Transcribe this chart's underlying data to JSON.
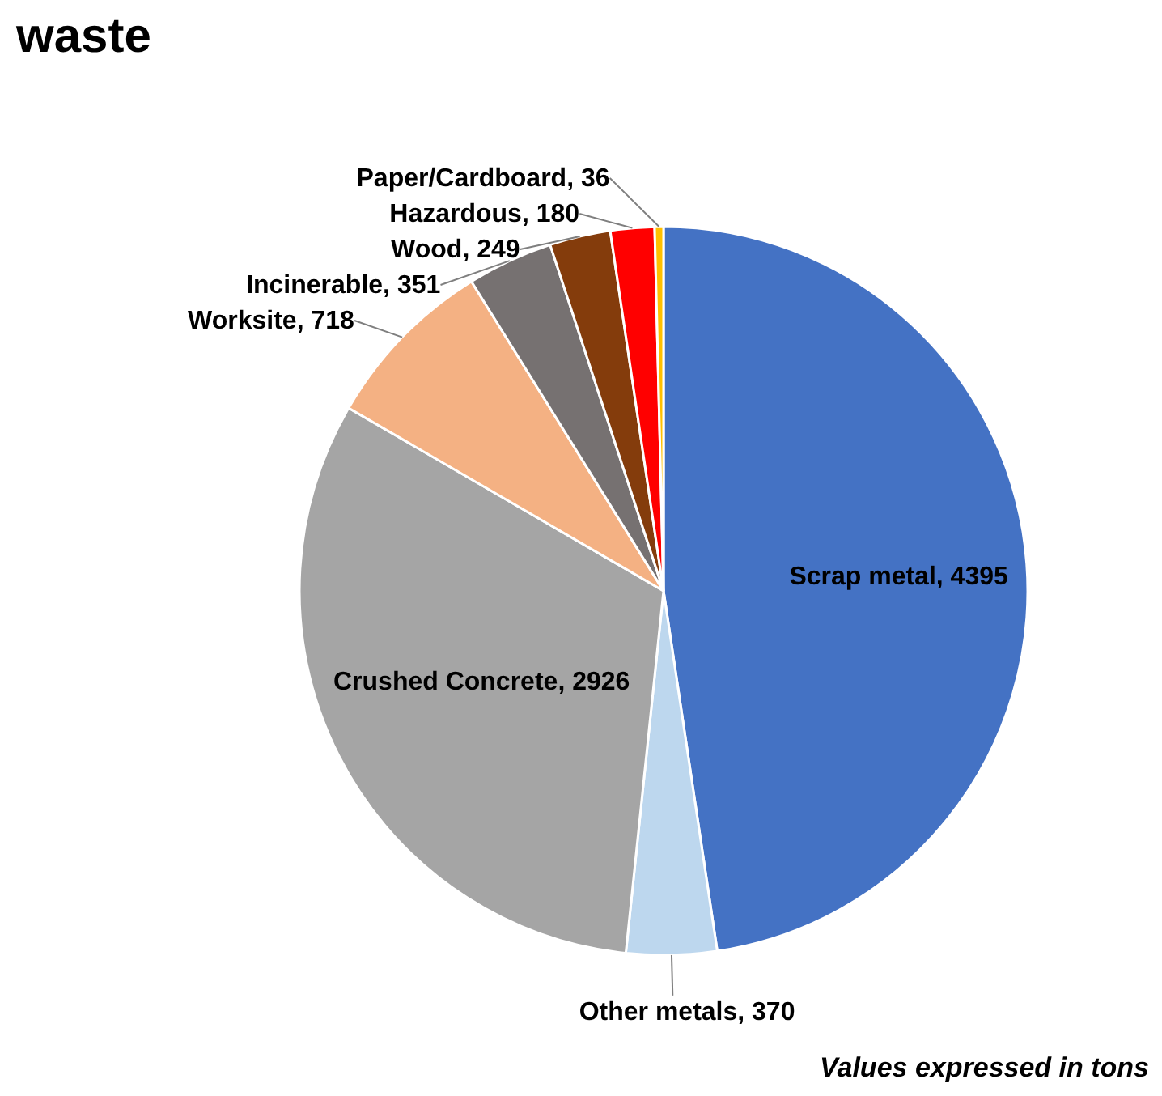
{
  "chart_data": {
    "type": "pie",
    "title": "waste",
    "categories": [
      "Scrap metal",
      "Other metals",
      "Crushed Concrete",
      "Worksite",
      "Incinerable",
      "Wood",
      "Hazardous ",
      "Paper/Cardboard"
    ],
    "values": [
      4395,
      370,
      2926,
      718,
      351,
      249,
      180,
      36
    ],
    "value_labels": [
      ", 4395",
      ", 370",
      ", 2926",
      ", 718",
      ", 351",
      ", 249",
      ", 180",
      ", 36"
    ],
    "colors": [
      "#4472c4",
      "#bdd7ee",
      "#a5a5a5",
      "#f4b183",
      "#767171",
      "#843c0c",
      "#ff0000",
      "#ffc000"
    ],
    "annotations": [
      "Values expressed in tons"
    ]
  }
}
